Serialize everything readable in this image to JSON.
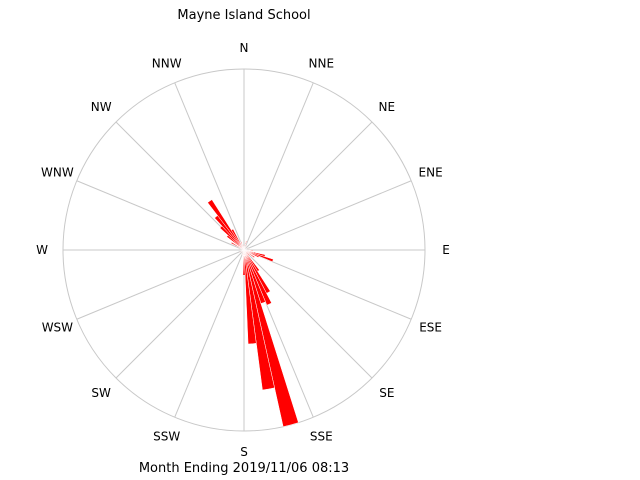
{
  "chart_data": {
    "type": "wind-rose",
    "title": "Mayne Island School",
    "footer": "Month Ending 2019/11/06 08:13",
    "directions": [
      "N",
      "NNE",
      "NE",
      "ENE",
      "E",
      "ESE",
      "SE",
      "SSE",
      "S",
      "SSW",
      "SW",
      "WSW",
      "W",
      "WNW",
      "NW",
      "NNW"
    ],
    "bin_width_degrees": 5,
    "sector_color": "#ff0000",
    "grid_color": "#c8c8c8",
    "max_radius_fraction": 1.0,
    "sectors": [
      {
        "direction_deg": 0,
        "value": 0.02
      },
      {
        "direction_deg": 10,
        "value": 0.03
      },
      {
        "direction_deg": 15,
        "value": 0.05
      },
      {
        "direction_deg": 30,
        "value": 0.03
      },
      {
        "direction_deg": 55,
        "value": 0.02
      },
      {
        "direction_deg": 75,
        "value": 0.03
      },
      {
        "direction_deg": 95,
        "value": 0.05
      },
      {
        "direction_deg": 105,
        "value": 0.12
      },
      {
        "direction_deg": 110,
        "value": 0.17
      },
      {
        "direction_deg": 115,
        "value": 0.09
      },
      {
        "direction_deg": 125,
        "value": 0.07
      },
      {
        "direction_deg": 135,
        "value": 0.04
      },
      {
        "direction_deg": 145,
        "value": 0.14
      },
      {
        "direction_deg": 150,
        "value": 0.27
      },
      {
        "direction_deg": 155,
        "value": 0.33
      },
      {
        "direction_deg": 160,
        "value": 0.31
      },
      {
        "direction_deg": 165,
        "value": 1.0
      },
      {
        "direction_deg": 170,
        "value": 0.78
      },
      {
        "direction_deg": 175,
        "value": 0.52
      },
      {
        "direction_deg": 180,
        "value": 0.14
      },
      {
        "direction_deg": 185,
        "value": 0.04
      },
      {
        "direction_deg": 200,
        "value": 0.03
      },
      {
        "direction_deg": 220,
        "value": 0.02
      },
      {
        "direction_deg": 240,
        "value": 0.03
      },
      {
        "direction_deg": 260,
        "value": 0.02
      },
      {
        "direction_deg": 285,
        "value": 0.03
      },
      {
        "direction_deg": 300,
        "value": 0.08
      },
      {
        "direction_deg": 310,
        "value": 0.12
      },
      {
        "direction_deg": 315,
        "value": 0.18
      },
      {
        "direction_deg": 320,
        "value": 0.24
      },
      {
        "direction_deg": 325,
        "value": 0.33
      },
      {
        "direction_deg": 330,
        "value": 0.13
      },
      {
        "direction_deg": 340,
        "value": 0.05
      },
      {
        "direction_deg": 350,
        "value": 0.03
      }
    ]
  }
}
